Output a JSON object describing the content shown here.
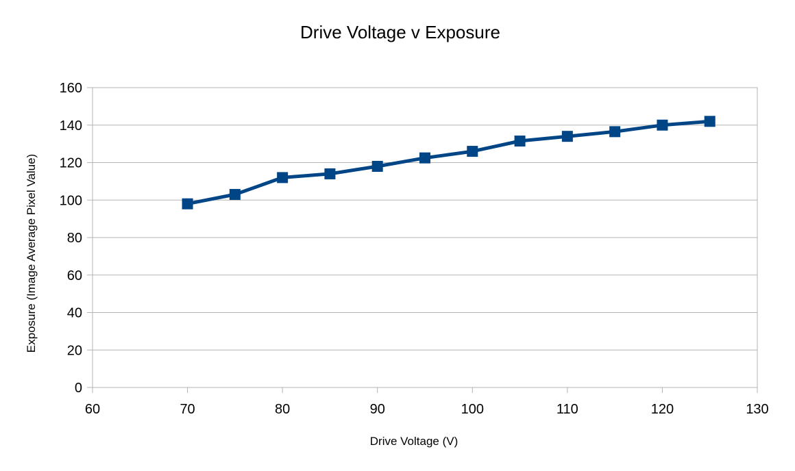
{
  "chart_data": {
    "type": "line",
    "title": "Drive Voltage v Exposure",
    "xlabel": "Drive Voltage (V)",
    "ylabel": "Exposure (Image Average Pixel Value)",
    "xlim": [
      60,
      130
    ],
    "ylim": [
      0,
      160
    ],
    "xticks": [
      60,
      70,
      80,
      90,
      100,
      110,
      120,
      130
    ],
    "yticks": [
      0,
      20,
      40,
      60,
      80,
      100,
      120,
      140,
      160
    ],
    "grid": true,
    "series": [
      {
        "color": "#004586",
        "marker": "square",
        "x": [
          70,
          75,
          80,
          85,
          90,
          95,
          100,
          105,
          110,
          115,
          120,
          125
        ],
        "y": [
          98,
          103,
          112,
          114,
          118,
          122.5,
          126,
          131.5,
          134,
          136.5,
          140,
          142
        ]
      }
    ]
  }
}
